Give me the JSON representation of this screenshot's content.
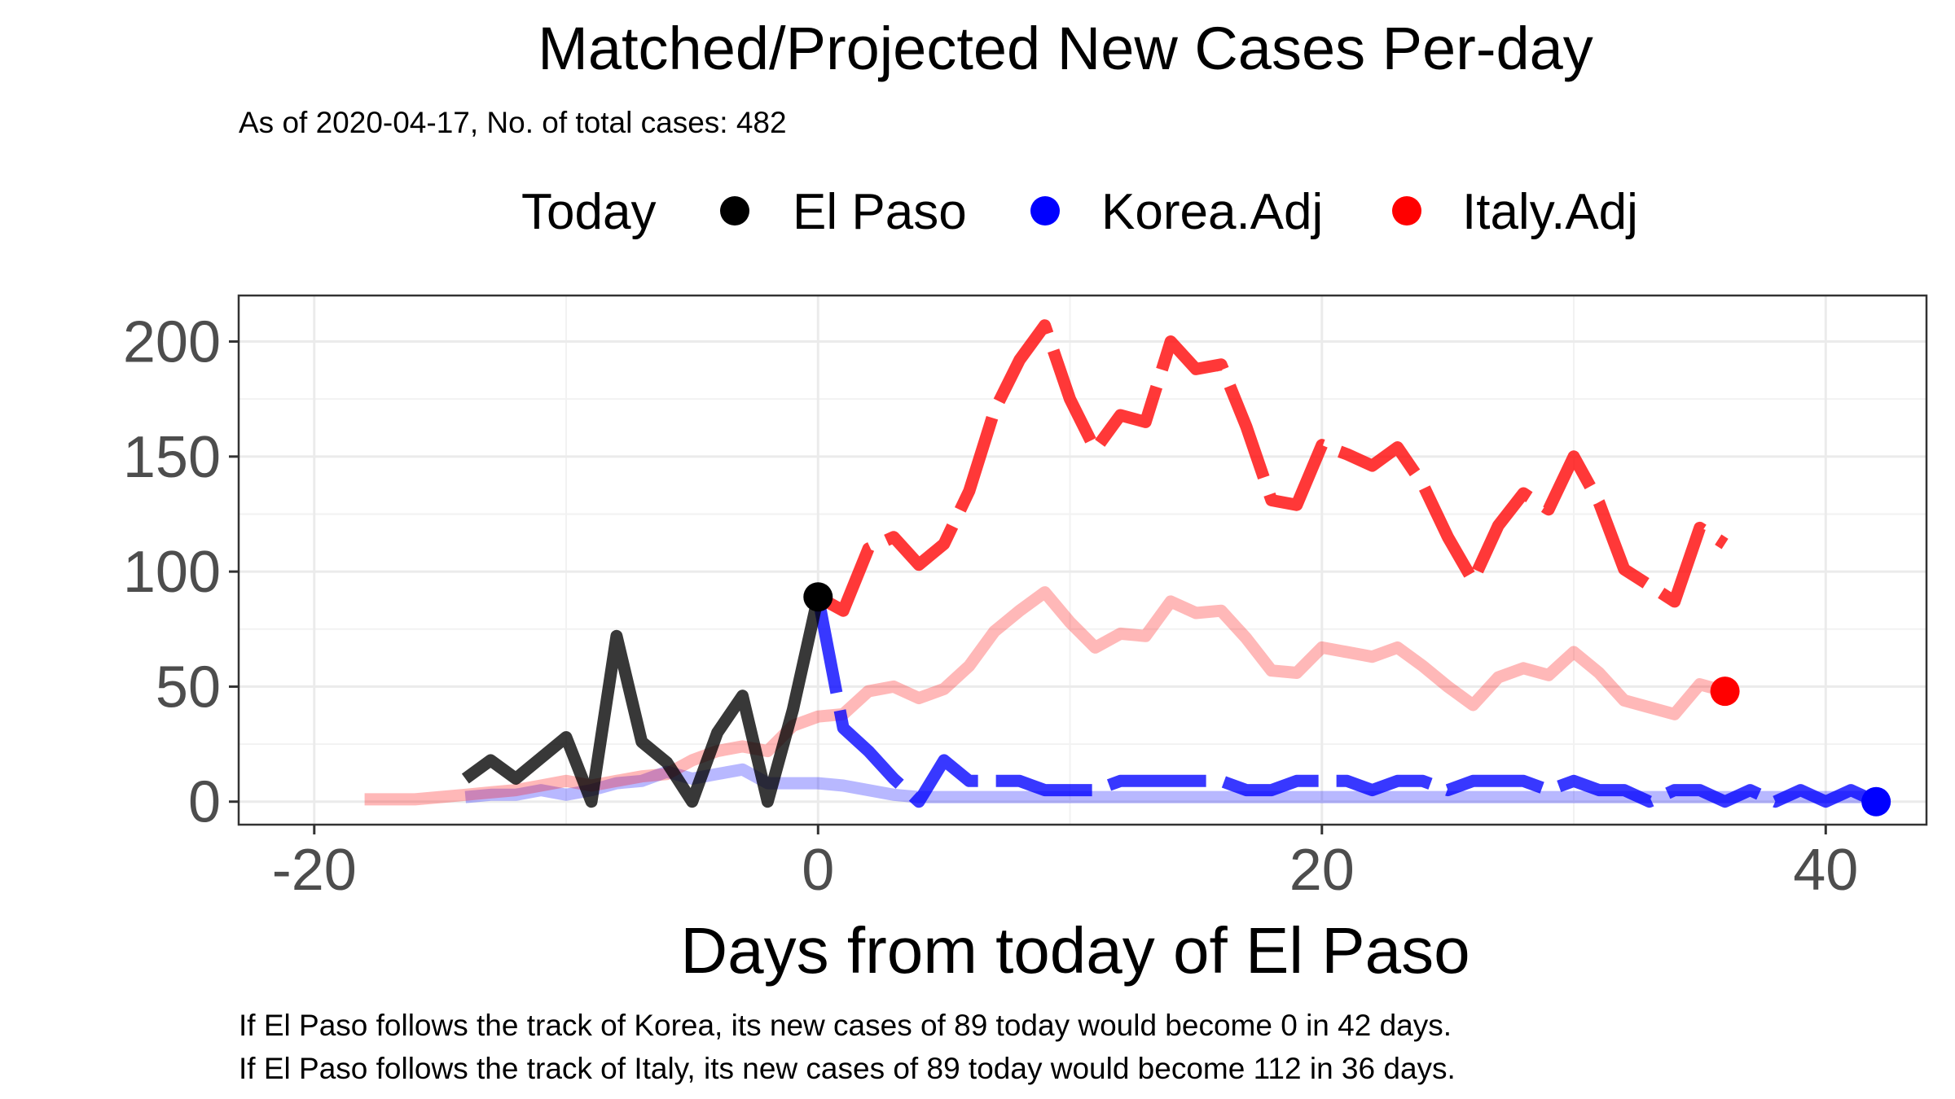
{
  "chart_data": {
    "type": "line",
    "title": "Matched/Projected New Cases Per-day",
    "subtitle": "As of 2020-04-17, No. of total cases: 482",
    "xlabel": "Days from today of El Paso",
    "ylabel": "",
    "xlim": [
      -23,
      44
    ],
    "ylim": [
      -10,
      220
    ],
    "xticks": [
      -20,
      0,
      20,
      40
    ],
    "yticks": [
      0,
      50,
      100,
      150,
      200
    ],
    "grid": true,
    "legend": {
      "placement": "top",
      "title": "Today",
      "entries": [
        {
          "label": "El Paso",
          "color": "#000000"
        },
        {
          "label": "Korea.Adj",
          "color": "#0000ff"
        },
        {
          "label": "Italy.Adj",
          "color": "#ff0000"
        }
      ]
    },
    "series": [
      {
        "name": "El Paso",
        "role": "observed",
        "color": "#000000",
        "x": [
          -14,
          -13,
          -12,
          -11,
          -10,
          -9,
          -8,
          -7,
          -6,
          -5,
          -4,
          -3,
          -2,
          -1,
          0
        ],
        "y": [
          10,
          18,
          10,
          19,
          28,
          0,
          72,
          26,
          17,
          0,
          30,
          46,
          0,
          40,
          89
        ]
      },
      {
        "name": "Korea.Adj",
        "role": "matched",
        "color": "#0000ff",
        "x": [
          -14,
          -13,
          -12,
          -11,
          -10,
          -9,
          -8,
          -7,
          -6,
          -5,
          -4,
          -3,
          -2,
          -1,
          0,
          1,
          2,
          3,
          4,
          5,
          6,
          7,
          8,
          9,
          10,
          11,
          12,
          13,
          14,
          15,
          16,
          17,
          18,
          19,
          20,
          21,
          22,
          23,
          24,
          25,
          26,
          27,
          28,
          29,
          30,
          31,
          32,
          33,
          34,
          35,
          36,
          37,
          38,
          39,
          40,
          41,
          42
        ],
        "y": [
          2,
          3,
          3,
          5,
          3,
          5,
          8,
          9,
          13,
          10,
          12,
          14,
          8,
          8,
          8,
          7,
          5,
          3,
          2,
          2,
          2,
          2,
          2,
          2,
          2,
          2,
          2,
          2,
          2,
          2,
          2,
          2,
          2,
          2,
          2,
          2,
          2,
          2,
          2,
          2,
          2,
          2,
          2,
          2,
          2,
          2,
          2,
          2,
          2,
          2,
          2,
          2,
          2,
          2,
          2,
          2,
          2
        ]
      },
      {
        "name": "Korea.Adj",
        "role": "projected",
        "color": "#0000ff",
        "x": [
          0,
          1,
          2,
          3,
          4,
          5,
          6,
          7,
          8,
          9,
          10,
          11,
          12,
          13,
          14,
          15,
          16,
          17,
          18,
          19,
          20,
          21,
          22,
          23,
          24,
          25,
          26,
          27,
          28,
          29,
          30,
          31,
          32,
          33,
          34,
          35,
          36,
          37,
          38,
          39,
          40,
          41,
          42
        ],
        "y": [
          89,
          32,
          22,
          10,
          0,
          18,
          9,
          9,
          9,
          5,
          5,
          5,
          9,
          9,
          9,
          9,
          9,
          5,
          5,
          9,
          9,
          9,
          5,
          9,
          9,
          5,
          9,
          9,
          9,
          5,
          9,
          5,
          5,
          0,
          5,
          5,
          0,
          5,
          0,
          5,
          0,
          5,
          0
        ]
      },
      {
        "name": "Italy.Adj",
        "role": "matched",
        "color": "#ff0000",
        "x": [
          -18,
          -17,
          -16,
          -15,
          -14,
          -13,
          -12,
          -11,
          -10,
          -9,
          -8,
          -7,
          -6,
          -5,
          -4,
          -3,
          -2,
          -1,
          0,
          1,
          2,
          3,
          4,
          5,
          6,
          7,
          8,
          9,
          10,
          11,
          12,
          13,
          14,
          15,
          16,
          17,
          18,
          19,
          20,
          21,
          22,
          23,
          24,
          25,
          26,
          27,
          28,
          29,
          30,
          31,
          32,
          33,
          34,
          35,
          36
        ],
        "y": [
          1,
          1,
          1,
          2,
          3,
          4,
          5,
          7,
          9,
          7,
          9,
          11,
          12,
          18,
          22,
          24,
          22,
          33,
          37,
          38,
          48,
          50,
          45,
          49,
          59,
          74,
          83,
          91,
          78,
          67,
          73,
          72,
          87,
          82,
          83,
          71,
          57,
          56,
          67,
          65,
          63,
          67,
          59,
          50,
          42,
          54,
          58,
          55,
          65,
          56,
          44,
          41,
          38,
          51,
          48
        ]
      },
      {
        "name": "Italy.Adj",
        "role": "projected",
        "color": "#ff0000",
        "x": [
          0,
          1,
          2,
          3,
          4,
          5,
          6,
          7,
          8,
          9,
          10,
          11,
          12,
          13,
          14,
          15,
          16,
          17,
          18,
          19,
          20,
          21,
          22,
          23,
          24,
          25,
          26,
          27,
          28,
          29,
          30,
          31,
          32,
          33,
          34,
          35,
          36
        ],
        "y": [
          89,
          83,
          110,
          115,
          103,
          112,
          135,
          170,
          192,
          207,
          175,
          153,
          168,
          165,
          200,
          188,
          190,
          163,
          131,
          129,
          155,
          151,
          146,
          154,
          138,
          115,
          96,
          120,
          134,
          127,
          150,
          130,
          101,
          94,
          87,
          119,
          112
        ]
      }
    ],
    "markers": [
      {
        "series": "El Paso",
        "x": 0,
        "y": 89,
        "color": "#000000"
      },
      {
        "series": "Korea.Adj",
        "x": 42,
        "y": 0,
        "color": "#0000ff"
      },
      {
        "series": "Italy.Adj",
        "x": 36,
        "y": 48,
        "color": "#ff0000"
      }
    ]
  },
  "captions": [
    "If El Paso follows the track of Korea, its new cases of 89 today would become 0 in 42 days.",
    "If El Paso follows the track of Italy, its new cases of 89 today would become 112 in 36 days."
  ]
}
